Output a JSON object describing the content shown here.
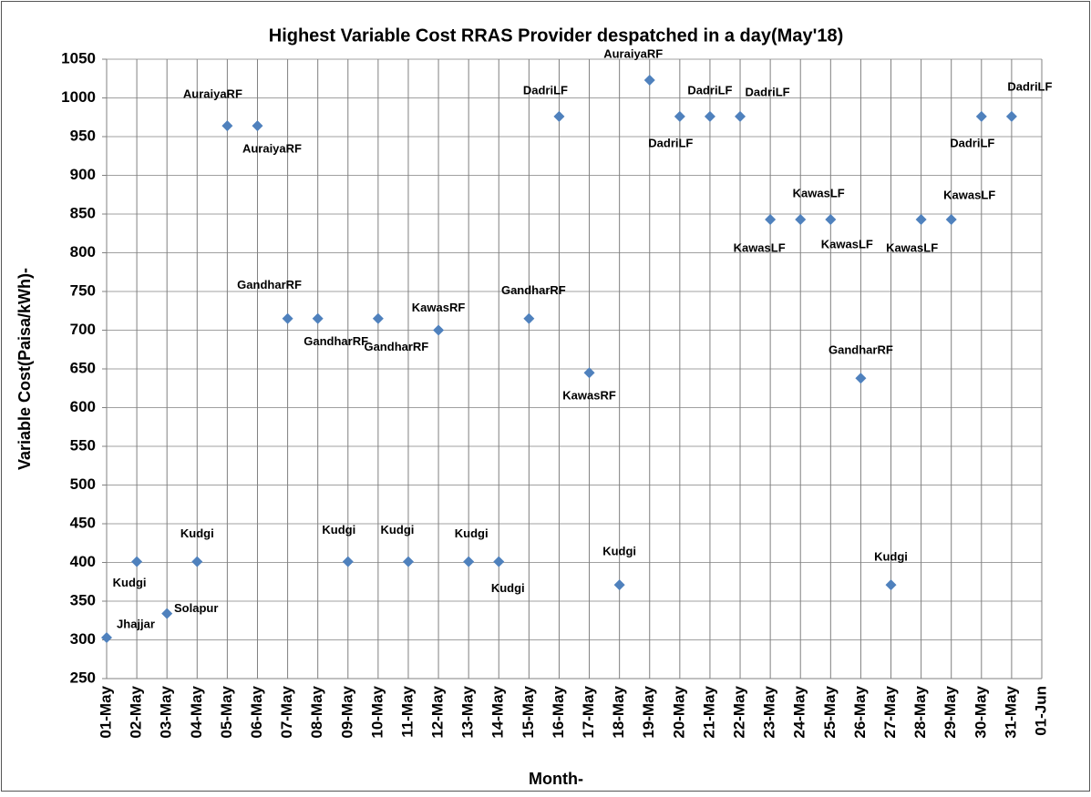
{
  "chart_data": {
    "type": "scatter",
    "title": "Highest Variable Cost RRAS Provider despatched in a day(May'18)",
    "x_label": "Month-",
    "y_label": "Variable Cost(Paisa/kWh)-",
    "categories": [
      "01-May",
      "02-May",
      "03-May",
      "04-May",
      "05-May",
      "06-May",
      "07-May",
      "08-May",
      "09-May",
      "10-May",
      "11-May",
      "12-May",
      "13-May",
      "14-May",
      "15-May",
      "16-May",
      "17-May",
      "18-May",
      "19-May",
      "20-May",
      "21-May",
      "22-May",
      "23-May",
      "24-May",
      "25-May",
      "26-May",
      "27-May",
      "28-May",
      "29-May",
      "30-May",
      "31-May",
      "01-Jun"
    ],
    "values": [
      303,
      401,
      334,
      401,
      964,
      964,
      715,
      715,
      401,
      715,
      401,
      700,
      401,
      401,
      715,
      976,
      645,
      371,
      1023,
      976,
      976,
      976,
      843,
      843,
      843,
      638,
      371,
      843,
      843,
      976,
      976,
      null
    ],
    "point_labels": [
      "Jhajjar",
      "Kudgi",
      "Solapur",
      "Kudgi",
      "AuraiyaRF",
      "AuraiyaRF",
      "GandharRF",
      "GandharRF",
      "Kudgi",
      "GandharRF",
      "Kudgi",
      "KawasRF",
      "Kudgi",
      "Kudgi",
      "GandharRF",
      "DadriLF",
      "KawasRF",
      "Kudgi",
      "AuraiyaRF",
      "DadriLF",
      "DadriLF",
      "DadriLF",
      "KawasLF",
      "KawasLF",
      "KawasLF",
      "GandharRF",
      "Kudgi",
      "KawasLF",
      "KawasLF",
      "DadriLF",
      "DadriLF",
      null
    ],
    "color": "#4f81bd",
    "ylim": [
      250,
      1050
    ],
    "yticks": [
      250,
      300,
      350,
      400,
      450,
      500,
      550,
      600,
      650,
      700,
      750,
      800,
      850,
      900,
      950,
      1000,
      1050
    ],
    "grid": true
  }
}
